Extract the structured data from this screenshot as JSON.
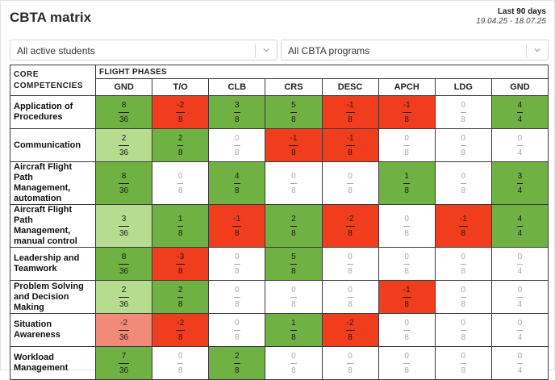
{
  "header": {
    "title": "CBTA matrix",
    "range_label": "Last 90 days",
    "range_dates": "19.04.25 - 18.07.25"
  },
  "filters": {
    "students": {
      "value": "All active students"
    },
    "programs": {
      "value": "All CBTA programs"
    }
  },
  "matrix": {
    "corner_label": "CORE COMPETENCIES",
    "phases_label": "FLIGHT PHASES",
    "phases": [
      "GND",
      "T/O",
      "CLB",
      "CRS",
      "DESC",
      "APCH",
      "LDG",
      "GND"
    ],
    "rows": [
      {
        "label": "Application of Procedures",
        "cells": [
          {
            "num": "8",
            "den": "36",
            "state": "pos"
          },
          {
            "num": "-2",
            "den": "8",
            "state": "neg"
          },
          {
            "num": "3",
            "den": "8",
            "state": "pos"
          },
          {
            "num": "5",
            "den": "8",
            "state": "pos"
          },
          {
            "num": "-1",
            "den": "8",
            "state": "neg"
          },
          {
            "num": "-1",
            "den": "8",
            "state": "neg"
          },
          {
            "num": "0",
            "den": "8",
            "state": "zero"
          },
          {
            "num": "4",
            "den": "4",
            "state": "pos"
          }
        ]
      },
      {
        "label": "Communication",
        "cells": [
          {
            "num": "2",
            "den": "36",
            "state": "light"
          },
          {
            "num": "2",
            "den": "8",
            "state": "pos"
          },
          {
            "num": "0",
            "den": "8",
            "state": "zero"
          },
          {
            "num": "-1",
            "den": "8",
            "state": "neg"
          },
          {
            "num": "-1",
            "den": "8",
            "state": "neg"
          },
          {
            "num": "0",
            "den": "8",
            "state": "zero"
          },
          {
            "num": "0",
            "den": "8",
            "state": "zero"
          },
          {
            "num": "0",
            "den": "4",
            "state": "zero"
          }
        ]
      },
      {
        "label": "Aircraft Flight Path Management, automation",
        "cells": [
          {
            "num": "8",
            "den": "36",
            "state": "pos"
          },
          {
            "num": "0",
            "den": "8",
            "state": "zero"
          },
          {
            "num": "4",
            "den": "8",
            "state": "pos"
          },
          {
            "num": "0",
            "den": "8",
            "state": "zero"
          },
          {
            "num": "0",
            "den": "8",
            "state": "zero"
          },
          {
            "num": "1",
            "den": "8",
            "state": "pos"
          },
          {
            "num": "0",
            "den": "8",
            "state": "zero"
          },
          {
            "num": "3",
            "den": "4",
            "state": "pos"
          }
        ]
      },
      {
        "label": "Aircraft Flight Path Management, manual control",
        "cells": [
          {
            "num": "3",
            "den": "36",
            "state": "light"
          },
          {
            "num": "1",
            "den": "8",
            "state": "pos"
          },
          {
            "num": "-1",
            "den": "8",
            "state": "neg"
          },
          {
            "num": "2",
            "den": "8",
            "state": "pos"
          },
          {
            "num": "-2",
            "den": "8",
            "state": "neg"
          },
          {
            "num": "0",
            "den": "8",
            "state": "zero"
          },
          {
            "num": "-1",
            "den": "8",
            "state": "neg"
          },
          {
            "num": "4",
            "den": "4",
            "state": "pos"
          }
        ]
      },
      {
        "label": "Leadership and Teamwork",
        "cells": [
          {
            "num": "8",
            "den": "36",
            "state": "pos"
          },
          {
            "num": "-3",
            "den": "8",
            "state": "neg"
          },
          {
            "num": "0",
            "den": "8",
            "state": "zero"
          },
          {
            "num": "5",
            "den": "8",
            "state": "pos"
          },
          {
            "num": "0",
            "den": "8",
            "state": "zero"
          },
          {
            "num": "0",
            "den": "8",
            "state": "zero"
          },
          {
            "num": "0",
            "den": "8",
            "state": "zero"
          },
          {
            "num": "0",
            "den": "4",
            "state": "zero"
          }
        ]
      },
      {
        "label": "Problem Solving and Decision Making",
        "cells": [
          {
            "num": "2",
            "den": "36",
            "state": "light"
          },
          {
            "num": "2",
            "den": "8",
            "state": "pos"
          },
          {
            "num": "0",
            "den": "8",
            "state": "zero"
          },
          {
            "num": "0",
            "den": "8",
            "state": "zero"
          },
          {
            "num": "0",
            "den": "8",
            "state": "zero"
          },
          {
            "num": "-1",
            "den": "8",
            "state": "neg"
          },
          {
            "num": "0",
            "den": "8",
            "state": "zero"
          },
          {
            "num": "0",
            "den": "4",
            "state": "zero"
          }
        ]
      },
      {
        "label": "Situation Awareness",
        "cells": [
          {
            "num": "-2",
            "den": "36",
            "state": "pink"
          },
          {
            "num": "-2",
            "den": "8",
            "state": "neg"
          },
          {
            "num": "0",
            "den": "8",
            "state": "zero"
          },
          {
            "num": "1",
            "den": "8",
            "state": "pos"
          },
          {
            "num": "-2",
            "den": "8",
            "state": "neg"
          },
          {
            "num": "0",
            "den": "8",
            "state": "zero"
          },
          {
            "num": "0",
            "den": "8",
            "state": "zero"
          },
          {
            "num": "0",
            "den": "4",
            "state": "zero"
          }
        ]
      },
      {
        "label": "Workload Management",
        "cells": [
          {
            "num": "7",
            "den": "36",
            "state": "pos"
          },
          {
            "num": "0",
            "den": "8",
            "state": "zero"
          },
          {
            "num": "2",
            "den": "8",
            "state": "pos"
          },
          {
            "num": "0",
            "den": "8",
            "state": "zero"
          },
          {
            "num": "0",
            "den": "8",
            "state": "zero"
          },
          {
            "num": "0",
            "den": "8",
            "state": "zero"
          },
          {
            "num": "0",
            "den": "8",
            "state": "zero"
          },
          {
            "num": "0",
            "den": "4",
            "state": "zero"
          }
        ]
      }
    ]
  },
  "colors": {
    "positive": "#70b143",
    "positive_light": "#b5dc8f",
    "negative": "#f03d1e",
    "negative_light": "#f28a7a",
    "neutral": "#ffffff"
  },
  "icons": {
    "dropdown": "chevron-down-icon"
  }
}
